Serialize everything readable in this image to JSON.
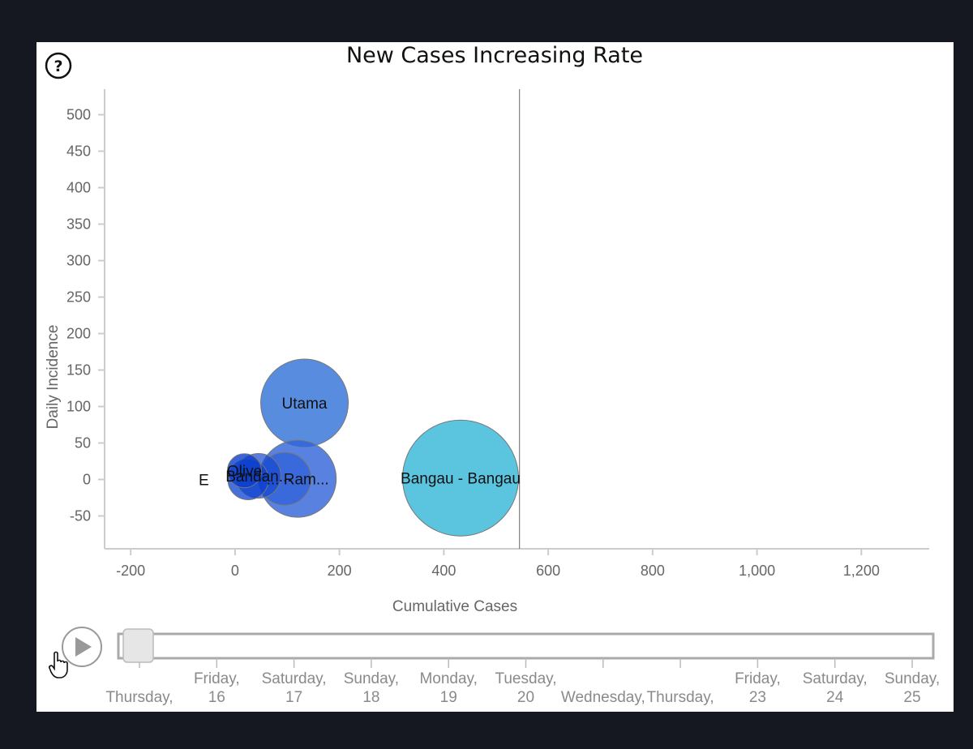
{
  "help_icon": "question-circle-icon",
  "play_icon": "play-icon",
  "cursor_icon": "hand-pointer-icon",
  "timeline": {
    "labels": [
      {
        "line1": "Thursday,",
        "line2": ""
      },
      {
        "line1": "Friday,",
        "line2": "16"
      },
      {
        "line1": "Saturday,",
        "line2": "17"
      },
      {
        "line1": "Sunday,",
        "line2": "18"
      },
      {
        "line1": "Monday,",
        "line2": "19"
      },
      {
        "line1": "Tuesday,",
        "line2": "20"
      },
      {
        "line1": "Wednesday,",
        "line2": ""
      },
      {
        "line1": "Thursday,",
        "line2": ""
      },
      {
        "line1": "Friday,",
        "line2": "23"
      },
      {
        "line1": "Saturday,",
        "line2": "24"
      },
      {
        "line1": "Sunday,",
        "line2": "25"
      }
    ],
    "position": 0
  },
  "colors": {
    "blue_light": "#4f86dd",
    "blue_dark": "#0a3fd0",
    "cyan": "#5bc5e0",
    "axis": "#cccccc",
    "tick_text": "#666666"
  },
  "chart_data": {
    "type": "scatter",
    "title": "New Cases Increasing Rate",
    "xlabel": "Cumulative Cases",
    "ylabel": "Daily Incidence",
    "xlim": [
      -250,
      1330
    ],
    "ylim": [
      -95,
      535
    ],
    "x_ticks": [
      -200,
      0,
      200,
      400,
      600,
      800,
      1000,
      1200
    ],
    "x_tick_labels": [
      "-200",
      "0",
      "200",
      "400",
      "600",
      "800",
      "1,000",
      "1,200"
    ],
    "y_ticks": [
      -50,
      0,
      50,
      100,
      150,
      200,
      250,
      300,
      350,
      400,
      450,
      500
    ],
    "y_tick_labels": [
      "-50",
      "0",
      "50",
      "100",
      "150",
      "200",
      "250",
      "300",
      "350",
      "400",
      "450",
      "500"
    ],
    "reference_line_x": 545,
    "grid": false,
    "legend": "none",
    "bubbles": [
      {
        "label": "Bangau - Bangau",
        "x": 432,
        "y": 2,
        "r": 143,
        "color": "#5bc5e0",
        "opacity": 1.0
      },
      {
        "label": "Utama",
        "x": 133,
        "y": 105,
        "r": 108,
        "color": "#4f86dd",
        "opacity": 0.95
      },
      {
        "label": "... Ram...",
        "x": 120,
        "y": 1,
        "r": 95,
        "color": "#2f63d8",
        "opacity": 0.8
      },
      {
        "label": "",
        "x": 95,
        "y": 1,
        "r": 65,
        "color": "#2558d6",
        "opacity": 0.6
      },
      {
        "label": "Bandan...",
        "x": 45,
        "y": 5,
        "r": 55,
        "color": "#1648d3",
        "opacity": 0.7
      },
      {
        "label": "",
        "x": 25,
        "y": 0,
        "r": 50,
        "color": "#0b40cf",
        "opacity": 0.75
      },
      {
        "label": "Olive",
        "x": 18,
        "y": 12,
        "r": 42,
        "color": "#0a3dcc",
        "opacity": 0.8
      },
      {
        "label": "E",
        "x": -60,
        "y": 0,
        "r": 0,
        "color": "#000000",
        "opacity": 0
      }
    ]
  }
}
